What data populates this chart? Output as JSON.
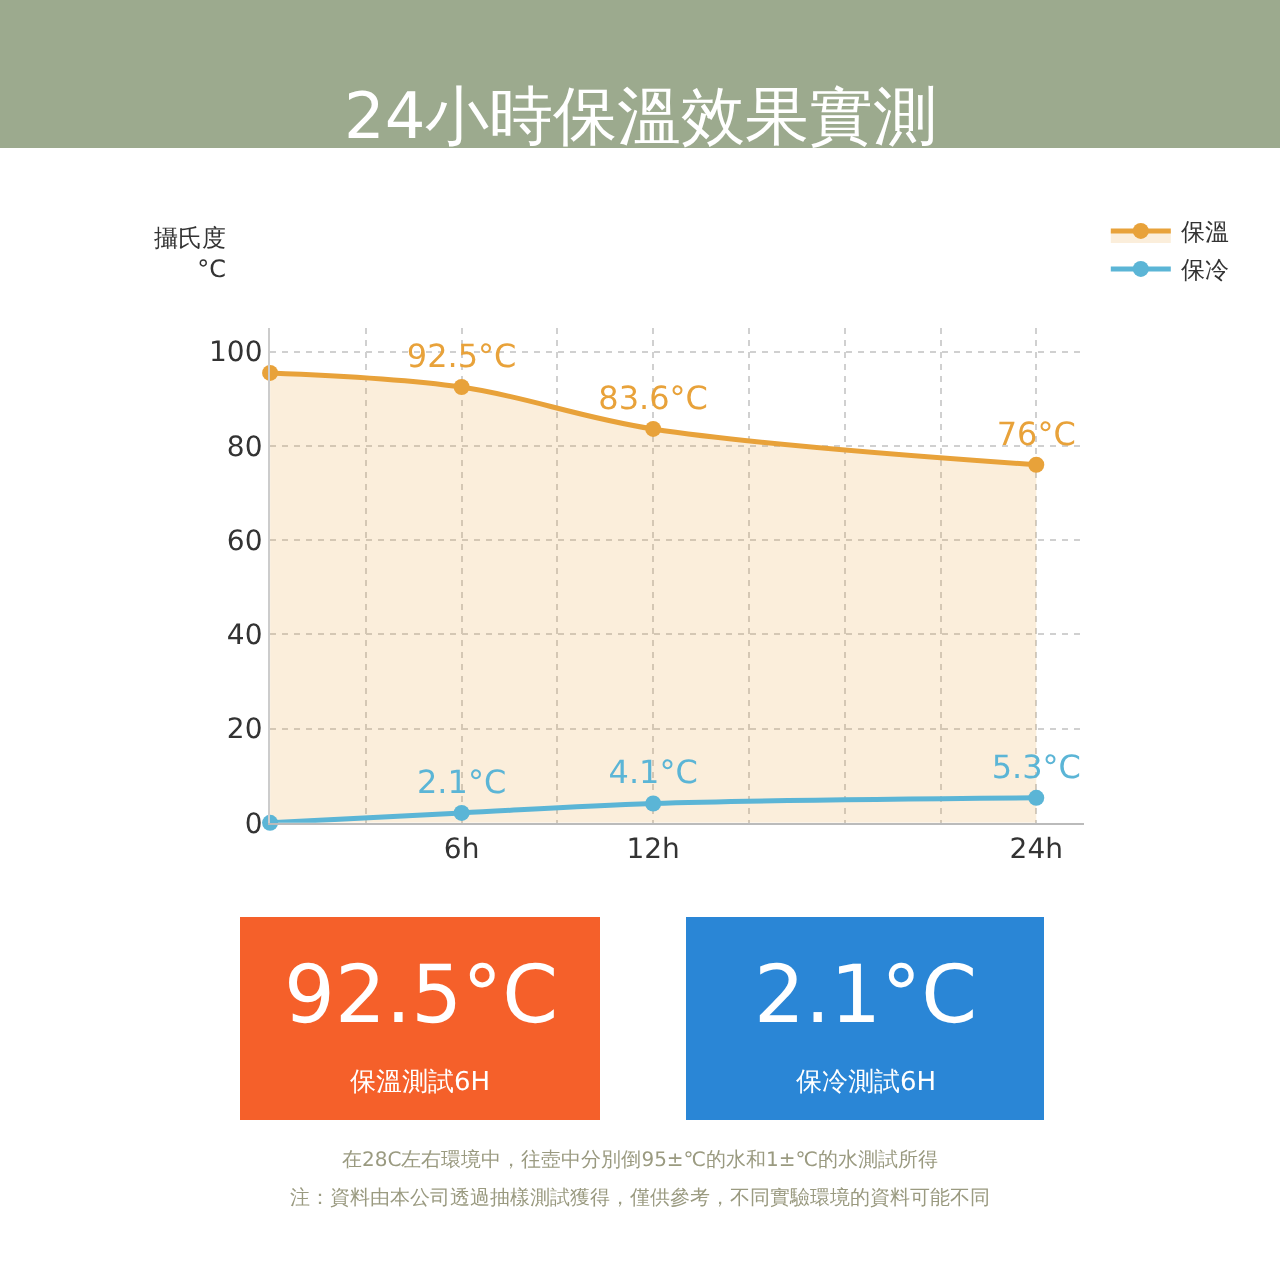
{
  "chart_data": {
    "type": "line",
    "title": "24小時保溫效果實測",
    "ylabel": "攝氏度\n°C",
    "x": [
      0,
      6,
      12,
      24
    ],
    "series": [
      {
        "name": "保溫",
        "type": "area",
        "color": "#e8a23a",
        "values": [
          95.5,
          92.5,
          83.6,
          76
        ],
        "value_labels": [
          null,
          "92.5°C",
          "83.6°C",
          "76°C"
        ]
      },
      {
        "name": "保冷",
        "color": "#5bb5d6",
        "values": [
          0,
          2.1,
          4.1,
          5.3
        ],
        "value_labels": [
          null,
          "2.1°C",
          "4.1°C",
          "5.3°C"
        ]
      }
    ],
    "xlim": [
      0,
      25.5
    ],
    "xticks": [
      {
        "value": 3,
        "label": null
      },
      {
        "value": 6,
        "label": "6h"
      },
      {
        "value": 9,
        "label": null
      },
      {
        "value": 12,
        "label": "12h"
      },
      {
        "value": 15,
        "label": null
      },
      {
        "value": 18,
        "label": null
      },
      {
        "value": 21,
        "label": null
      },
      {
        "value": 24,
        "label": "24h"
      }
    ],
    "ylim": [
      0,
      105
    ],
    "yticks": [
      0,
      20,
      40,
      60,
      80,
      100
    ],
    "grid": true,
    "legend": "top right",
    "marker": "circle",
    "line_style": "solid",
    "annotations": [
      "92.5°C",
      "保溫測試6H",
      "2.1°C",
      "保冷測試6H",
      "在28C左右環境中，往壺中分別倒95±℃的水和1±℃的水測試所得",
      "注：資料由本公司透過抽樣測試獲得，僅供參考，不同實驗環境的資料可能不同"
    ]
  }
}
